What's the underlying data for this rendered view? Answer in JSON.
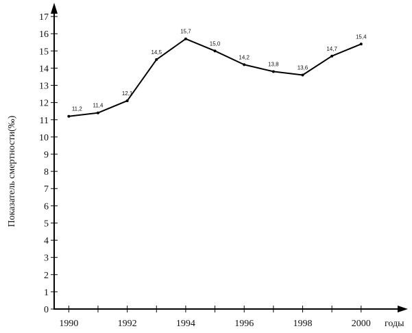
{
  "chart_data": {
    "type": "line",
    "xlabel": "годы",
    "ylabel": "Показатель смертности(‰)",
    "x_ticks": [
      "1990",
      "1992",
      "1994",
      "1996",
      "1998",
      "2000"
    ],
    "y_ticks": [
      "0",
      "1",
      "2",
      "3",
      "4",
      "5",
      "6",
      "7",
      "8",
      "9",
      "10",
      "11",
      "12",
      "13",
      "14",
      "15",
      "16",
      "17"
    ],
    "xlim": [
      1989.5,
      2001.6
    ],
    "ylim": [
      0,
      17.8
    ],
    "grid": false,
    "series": [
      {
        "x": [
          1990,
          1991,
          1992,
          1993,
          1994,
          1995,
          1996,
          1997,
          1998,
          1999,
          2000
        ],
        "values": [
          11.2,
          11.4,
          12.1,
          14.5,
          15.7,
          15.0,
          14.2,
          13.8,
          13.6,
          14.7,
          15.4
        ],
        "labels": [
          "11,2",
          "11,4",
          "12,1",
          "14,5",
          "15,7",
          "15,0",
          "14,2",
          "13,8",
          "13,6",
          "14,7",
          "15,4"
        ]
      }
    ]
  }
}
